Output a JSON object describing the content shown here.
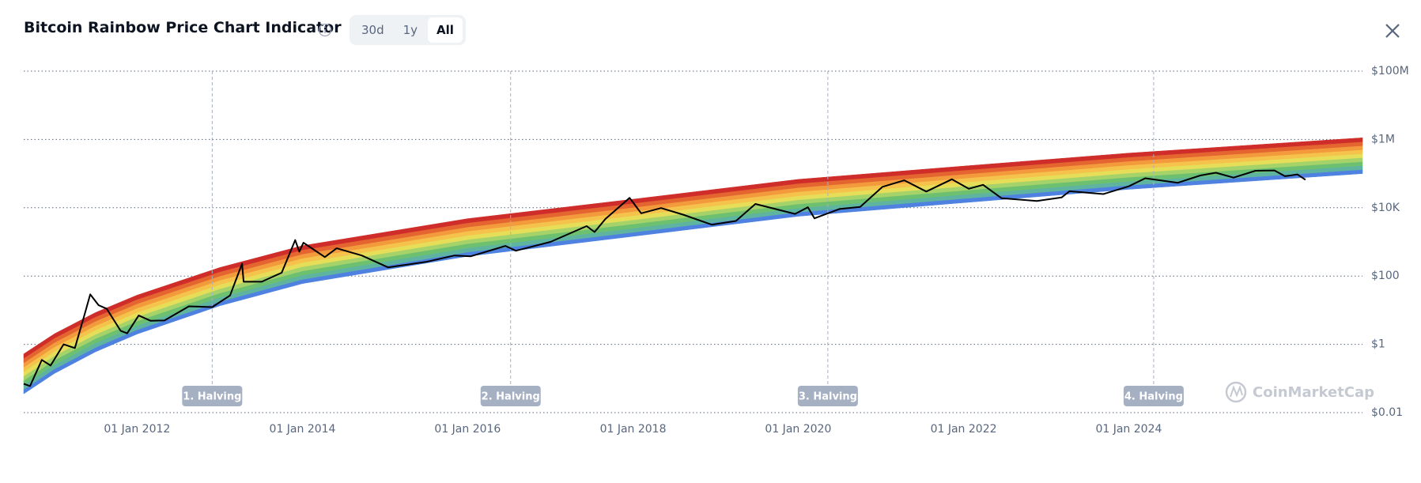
{
  "header": {
    "title": "Bitcoin Rainbow Price Chart Indicator",
    "ranges": [
      "30d",
      "1y",
      "All"
    ],
    "active_range": "All"
  },
  "chart_data": {
    "type": "line",
    "log_y": true,
    "grid": true,
    "watermark": "CoinMarketCap",
    "xlim": [
      "2010-08-18",
      "2026-10-30"
    ],
    "xticks": [
      {
        "value": "2012-01-01",
        "label": "01 Jan 2012"
      },
      {
        "value": "2014-01-01",
        "label": "01 Jan 2014"
      },
      {
        "value": "2016-01-01",
        "label": "01 Jan 2016"
      },
      {
        "value": "2018-01-01",
        "label": "01 Jan 2018"
      },
      {
        "value": "2020-01-01",
        "label": "01 Jan 2020"
      },
      {
        "value": "2022-01-01",
        "label": "01 Jan 2022"
      },
      {
        "value": "2024-01-01",
        "label": "01 Jan 2024"
      }
    ],
    "ylim": [
      0.01,
      100000000
    ],
    "yticks": [
      {
        "value": 100000000,
        "label": "$100M"
      },
      {
        "value": 1000000,
        "label": "$1M"
      },
      {
        "value": 10000,
        "label": "$10K"
      },
      {
        "value": 100,
        "label": "$100"
      },
      {
        "value": 1,
        "label": "$1"
      },
      {
        "value": 0.01,
        "label": "$0.01"
      }
    ],
    "annotations": [
      {
        "x": "2012-11-28",
        "text": "1. Halving"
      },
      {
        "x": "2016-07-09",
        "text": "2. Halving"
      },
      {
        "x": "2020-05-11",
        "text": "3. Halving"
      },
      {
        "x": "2024-04-20",
        "text": "4. Halving"
      }
    ],
    "bands": {
      "x": [
        "2010-08-18",
        "2011-01-01",
        "2011-07-01",
        "2012-01-01",
        "2013-01-01",
        "2014-01-01",
        "2016-01-01",
        "2018-01-01",
        "2020-01-01",
        "2022-01-01",
        "2024-01-01",
        "2026-10-30"
      ],
      "base": [
        0.0355,
        0.141,
        0.603,
        2.0,
        13.5,
        60.3,
        380,
        1450,
        5620,
        14100,
        34700,
        100000
      ],
      "series": [
        {
          "color": "#4f82e0",
          "values": [
            0.0479,
            0.19,
            0.809,
            2.67,
            17.9,
            80,
            504,
            1910,
            7410,
            18600,
            45500,
            131000
          ]
        },
        {
          "color": "#5fb4a0",
          "values": [
            0.0646,
            0.256,
            1.09,
            3.57,
            23.9,
            106,
            667,
            2520,
            9770,
            24400,
            59700,
            171000
          ]
        },
        {
          "color": "#6cc070",
          "values": [
            0.0871,
            0.344,
            1.46,
            4.79,
            31.8,
            141,
            885,
            3330,
            12900,
            32100,
            78200,
            224000
          ]
        },
        {
          "color": "#a6d26a",
          "values": [
            0.117,
            0.463,
            1.95,
            6.41,
            42.5,
            188,
            1170,
            4410,
            17000,
            42300,
            103000,
            293000
          ]
        },
        {
          "color": "#e6de58",
          "values": [
            0.158,
            0.624,
            2.62,
            8.57,
            56.5,
            249,
            1550,
            5830,
            22400,
            55500,
            135000,
            383000
          ]
        },
        {
          "color": "#f5c24b",
          "values": [
            0.214,
            0.839,
            3.52,
            11.5,
            75.2,
            331,
            2060,
            7710,
            29500,
            72900,
            177000,
            501000
          ]
        },
        {
          "color": "#f29a3c",
          "values": [
            0.288,
            1.13,
            4.73,
            15.4,
            100,
            440,
            2730,
            10200,
            38900,
            95900,
            231000,
            656000
          ]
        },
        {
          "color": "#e46530",
          "values": [
            0.389,
            1.52,
            6.34,
            20.6,
            133,
            585,
            3610,
            13500,
            51300,
            126000,
            303000,
            857000
          ]
        },
        {
          "color": "#cf2d2a",
          "values": [
            0.525,
            2.04,
            8.51,
            27.5,
            178,
            776,
            4790,
            17800,
            67600,
            166000,
            398000,
            1120000
          ]
        }
      ]
    },
    "x": [
      "2010-08-18",
      "2010-09-15",
      "2010-11-06",
      "2010-12-15",
      "2011-02-10",
      "2011-04-01",
      "2011-05-15",
      "2011-06-08",
      "2011-07-15",
      "2011-08-20",
      "2011-10-20",
      "2011-11-18",
      "2012-01-08",
      "2012-03-01",
      "2012-05-01",
      "2012-08-17",
      "2012-11-28",
      "2013-02-15",
      "2013-04-09",
      "2013-04-16",
      "2013-07-05",
      "2013-10-01",
      "2013-11-30",
      "2013-12-18",
      "2014-01-05",
      "2014-04-10",
      "2014-06-01",
      "2014-09-20",
      "2015-01-14",
      "2015-07-01",
      "2015-11-04",
      "2016-01-15",
      "2016-06-16",
      "2016-08-01",
      "2017-01-01",
      "2017-06-10",
      "2017-07-15",
      "2017-09-01",
      "2017-12-17",
      "2018-02-06",
      "2018-05-05",
      "2018-08-10",
      "2018-12-15",
      "2019-04-01",
      "2019-06-26",
      "2019-12-18",
      "2020-02-13",
      "2020-03-13",
      "2020-07-01",
      "2020-10-01",
      "2021-01-08",
      "2021-04-14",
      "2021-07-20",
      "2021-11-10",
      "2022-01-24",
      "2022-03-28",
      "2022-06-18",
      "2022-11-21",
      "2023-03-10",
      "2023-04-14",
      "2023-09-11",
      "2024-01-01",
      "2024-03-14",
      "2024-08-05",
      "2024-11-12",
      "2025-01-20",
      "2025-04-08",
      "2025-07-14",
      "2025-10-06",
      "2025-11-21",
      "2025-12-15",
      "2026-01-15",
      "2026-02-20"
    ],
    "series": [
      {
        "color": "#000000",
        "values": [
          0.07,
          0.06,
          0.35,
          0.24,
          1.0,
          0.78,
          8,
          29,
          14,
          11,
          2.5,
          2.1,
          7,
          4.9,
          5.0,
          13,
          12.3,
          27,
          230,
          68,
          68,
          125,
          1130,
          520,
          950,
          360,
          650,
          400,
          180,
          260,
          400,
          380,
          760,
          550,
          1000,
          2900,
          1950,
          4700,
          19500,
          6900,
          9800,
          6300,
          3200,
          4100,
          12900,
          6600,
          10300,
          4900,
          9200,
          10600,
          41000,
          63500,
          29800,
          68000,
          36000,
          47000,
          19000,
          15800,
          20000,
          30500,
          25100,
          42500,
          73000,
          54000,
          88000,
          106000,
          76000,
          121000,
          124000,
          84000,
          88000,
          95000,
          66000
        ]
      }
    ]
  }
}
